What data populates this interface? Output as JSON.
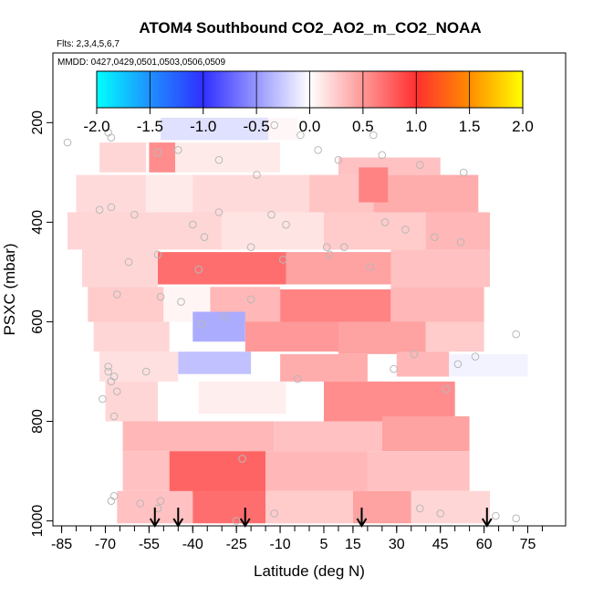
{
  "chart_data": {
    "type": "heatmap",
    "title": "ATOM4 Southbound CO2_AO2_m_CO2_NOAA",
    "flights_text": "Flts: 2,3,4,5,6,7",
    "mmdd_text": "MMDD: 0427,0429,0501,0503,0506,0509",
    "xlabel": "Latitude (deg N)",
    "ylabel": "PSXC (mbar)",
    "xlim": [
      -88,
      88
    ],
    "ylim": [
      1010,
      60
    ],
    "x_ticks": [
      "-85",
      "-70",
      "-55",
      "-40",
      "-25",
      "-10",
      "5",
      "15",
      "30",
      "45",
      "60",
      "75"
    ],
    "x_tick_values": [
      -85,
      -70,
      -55,
      -40,
      -25,
      -10,
      5,
      15,
      30,
      45,
      60,
      75
    ],
    "y_ticks": [
      "200",
      "400",
      "600",
      "800",
      "1000"
    ],
    "y_tick_values": [
      200,
      400,
      600,
      800,
      1000
    ],
    "colorbar": {
      "range": [
        -2.0,
        2.0
      ],
      "labels": [
        "-2.0",
        "-1.5",
        "-1.0",
        "-0.5",
        "0.0",
        "0.5",
        "1.0",
        "1.5",
        "2.0"
      ],
      "stops": [
        "#00ffff",
        "#1e90ff",
        "#2f2fff",
        "#ffffff",
        "#ff3030",
        "#ff8c00",
        "#ffff00"
      ]
    },
    "arrow_latitudes": [
      -53,
      -45,
      -22,
      18,
      61
    ],
    "cells": [
      {
        "lat0": -51,
        "lat1": -14,
        "p0": 190,
        "p1": 235,
        "v": -0.15
      },
      {
        "lat0": -14,
        "lat1": -4,
        "p0": 190,
        "p1": 235,
        "v": 0.04
      },
      {
        "lat0": -72,
        "lat1": -56,
        "p0": 240,
        "p1": 300,
        "v": 0.2
      },
      {
        "lat0": -55,
        "lat1": -46,
        "p0": 240,
        "p1": 300,
        "v": 0.55
      },
      {
        "lat0": -46,
        "lat1": -10,
        "p0": 240,
        "p1": 300,
        "v": 0.1
      },
      {
        "lat0": 10,
        "lat1": 45,
        "p0": 270,
        "p1": 305,
        "v": 0.3
      },
      {
        "lat0": -80,
        "lat1": -56,
        "p0": 305,
        "p1": 380,
        "v": 0.18
      },
      {
        "lat0": -56,
        "lat1": -40,
        "p0": 305,
        "p1": 380,
        "v": 0.1
      },
      {
        "lat0": -40,
        "lat1": 0,
        "p0": 305,
        "p1": 380,
        "v": 0.18
      },
      {
        "lat0": 0,
        "lat1": 22,
        "p0": 305,
        "p1": 380,
        "v": 0.28
      },
      {
        "lat0": 22,
        "lat1": 58,
        "p0": 305,
        "p1": 380,
        "v": 0.4
      },
      {
        "lat0": 17,
        "lat1": 27,
        "p0": 290,
        "p1": 360,
        "v": 0.6
      },
      {
        "lat0": -83,
        "lat1": -30,
        "p0": 380,
        "p1": 455,
        "v": 0.2
      },
      {
        "lat0": -30,
        "lat1": 5,
        "p0": 380,
        "p1": 455,
        "v": 0.13
      },
      {
        "lat0": 5,
        "lat1": 40,
        "p0": 380,
        "p1": 455,
        "v": 0.25
      },
      {
        "lat0": 40,
        "lat1": 62,
        "p0": 380,
        "p1": 455,
        "v": 0.35
      },
      {
        "lat0": -78,
        "lat1": -52,
        "p0": 455,
        "p1": 530,
        "v": 0.2
      },
      {
        "lat0": -52,
        "lat1": -8,
        "p0": 460,
        "p1": 525,
        "v": 0.7
      },
      {
        "lat0": -8,
        "lat1": 28,
        "p0": 460,
        "p1": 525,
        "v": 0.45
      },
      {
        "lat0": 28,
        "lat1": 62,
        "p0": 455,
        "p1": 530,
        "v": 0.3
      },
      {
        "lat0": -76,
        "lat1": -50,
        "p0": 530,
        "p1": 600,
        "v": 0.25
      },
      {
        "lat0": -50,
        "lat1": -34,
        "p0": 530,
        "p1": 600,
        "v": 0.05
      },
      {
        "lat0": -34,
        "lat1": -10,
        "p0": 530,
        "p1": 600,
        "v": 0.35
      },
      {
        "lat0": -10,
        "lat1": 28,
        "p0": 535,
        "p1": 610,
        "v": 0.6
      },
      {
        "lat0": 28,
        "lat1": 60,
        "p0": 530,
        "p1": 600,
        "v": 0.35
      },
      {
        "lat0": -74,
        "lat1": -48,
        "p0": 600,
        "p1": 660,
        "v": 0.2
      },
      {
        "lat0": -40,
        "lat1": -22,
        "p0": 580,
        "p1": 640,
        "v": -0.4
      },
      {
        "lat0": -22,
        "lat1": 10,
        "p0": 600,
        "p1": 660,
        "v": 0.5
      },
      {
        "lat0": 10,
        "lat1": 40,
        "p0": 600,
        "p1": 665,
        "v": 0.45
      },
      {
        "lat0": 40,
        "lat1": 60,
        "p0": 600,
        "p1": 660,
        "v": 0.25
      },
      {
        "lat0": -72,
        "lat1": -45,
        "p0": 660,
        "p1": 720,
        "v": 0.15
      },
      {
        "lat0": -45,
        "lat1": -20,
        "p0": 660,
        "p1": 705,
        "v": -0.3
      },
      {
        "lat0": -10,
        "lat1": 20,
        "p0": 665,
        "p1": 720,
        "v": 0.4
      },
      {
        "lat0": 30,
        "lat1": 48,
        "p0": 660,
        "p1": 710,
        "v": 0.35
      },
      {
        "lat0": 48,
        "lat1": 75,
        "p0": 665,
        "p1": 710,
        "v": -0.06
      },
      {
        "lat0": -70,
        "lat1": -52,
        "p0": 720,
        "p1": 800,
        "v": 0.2
      },
      {
        "lat0": -38,
        "lat1": -8,
        "p0": 720,
        "p1": 785,
        "v": 0.08
      },
      {
        "lat0": 5,
        "lat1": 50,
        "p0": 720,
        "p1": 800,
        "v": 0.55
      },
      {
        "lat0": -64,
        "lat1": -12,
        "p0": 800,
        "p1": 860,
        "v": 0.35
      },
      {
        "lat0": -12,
        "lat1": 25,
        "p0": 800,
        "p1": 860,
        "v": 0.3
      },
      {
        "lat0": 25,
        "lat1": 55,
        "p0": 790,
        "p1": 860,
        "v": 0.45
      },
      {
        "lat0": -64,
        "lat1": -48,
        "p0": 860,
        "p1": 940,
        "v": 0.3
      },
      {
        "lat0": -48,
        "lat1": -15,
        "p0": 860,
        "p1": 945,
        "v": 0.75
      },
      {
        "lat0": -15,
        "lat1": 20,
        "p0": 860,
        "p1": 940,
        "v": 0.35
      },
      {
        "lat0": 20,
        "lat1": 55,
        "p0": 860,
        "p1": 940,
        "v": 0.3
      },
      {
        "lat0": -66,
        "lat1": -40,
        "p0": 940,
        "p1": 1005,
        "v": 0.3
      },
      {
        "lat0": -40,
        "lat1": -15,
        "p0": 940,
        "p1": 1005,
        "v": 0.7
      },
      {
        "lat0": -15,
        "lat1": 15,
        "p0": 940,
        "p1": 1005,
        "v": 0.25
      },
      {
        "lat0": 15,
        "lat1": 35,
        "p0": 940,
        "p1": 1005,
        "v": 0.45
      },
      {
        "lat0": 35,
        "lat1": 62,
        "p0": 940,
        "p1": 1005,
        "v": 0.2
      }
    ],
    "points": [
      [
        -83,
        240
      ],
      [
        -69,
        220
      ],
      [
        -68,
        230
      ],
      [
        -52,
        260
      ],
      [
        -45,
        255
      ],
      [
        -31,
        275
      ],
      [
        -18,
        305
      ],
      [
        -12,
        205
      ],
      [
        -3,
        225
      ],
      [
        3,
        255
      ],
      [
        10,
        275
      ],
      [
        22,
        225
      ],
      [
        25,
        265
      ],
      [
        38,
        285
      ],
      [
        53,
        300
      ],
      [
        -72,
        375
      ],
      [
        -68,
        370
      ],
      [
        -60,
        385
      ],
      [
        -40,
        405
      ],
      [
        -31,
        380
      ],
      [
        -13,
        385
      ],
      [
        -8,
        405
      ],
      [
        -36,
        430
      ],
      [
        -20,
        450
      ],
      [
        6,
        450
      ],
      [
        12,
        450
      ],
      [
        26,
        400
      ],
      [
        33,
        415
      ],
      [
        43,
        430
      ],
      [
        52,
        440
      ],
      [
        -62,
        480
      ],
      [
        -52,
        465
      ],
      [
        -38,
        495
      ],
      [
        -9,
        475
      ],
      [
        7,
        465
      ],
      [
        21,
        490
      ],
      [
        -66,
        545
      ],
      [
        -51,
        550
      ],
      [
        -44,
        560
      ],
      [
        -29,
        590
      ],
      [
        -37,
        605
      ],
      [
        -20,
        555
      ],
      [
        -69,
        700
      ],
      [
        -67,
        710
      ],
      [
        -69,
        690
      ],
      [
        -68,
        720
      ],
      [
        -66,
        740
      ],
      [
        -56,
        700
      ],
      [
        -4,
        715
      ],
      [
        29,
        695
      ],
      [
        36,
        665
      ],
      [
        51,
        685
      ],
      [
        57,
        670
      ],
      [
        71,
        625
      ],
      [
        47,
        735
      ],
      [
        -71,
        755
      ],
      [
        -67,
        790
      ],
      [
        -23,
        875
      ],
      [
        -51,
        960
      ],
      [
        -52,
        975
      ],
      [
        -68,
        960
      ],
      [
        -67,
        950
      ],
      [
        -58,
        965
      ],
      [
        -25,
        1000
      ],
      [
        -12,
        985
      ],
      [
        18,
        995
      ],
      [
        45,
        985
      ],
      [
        38,
        975
      ],
      [
        64,
        990
      ],
      [
        71,
        995
      ]
    ]
  }
}
